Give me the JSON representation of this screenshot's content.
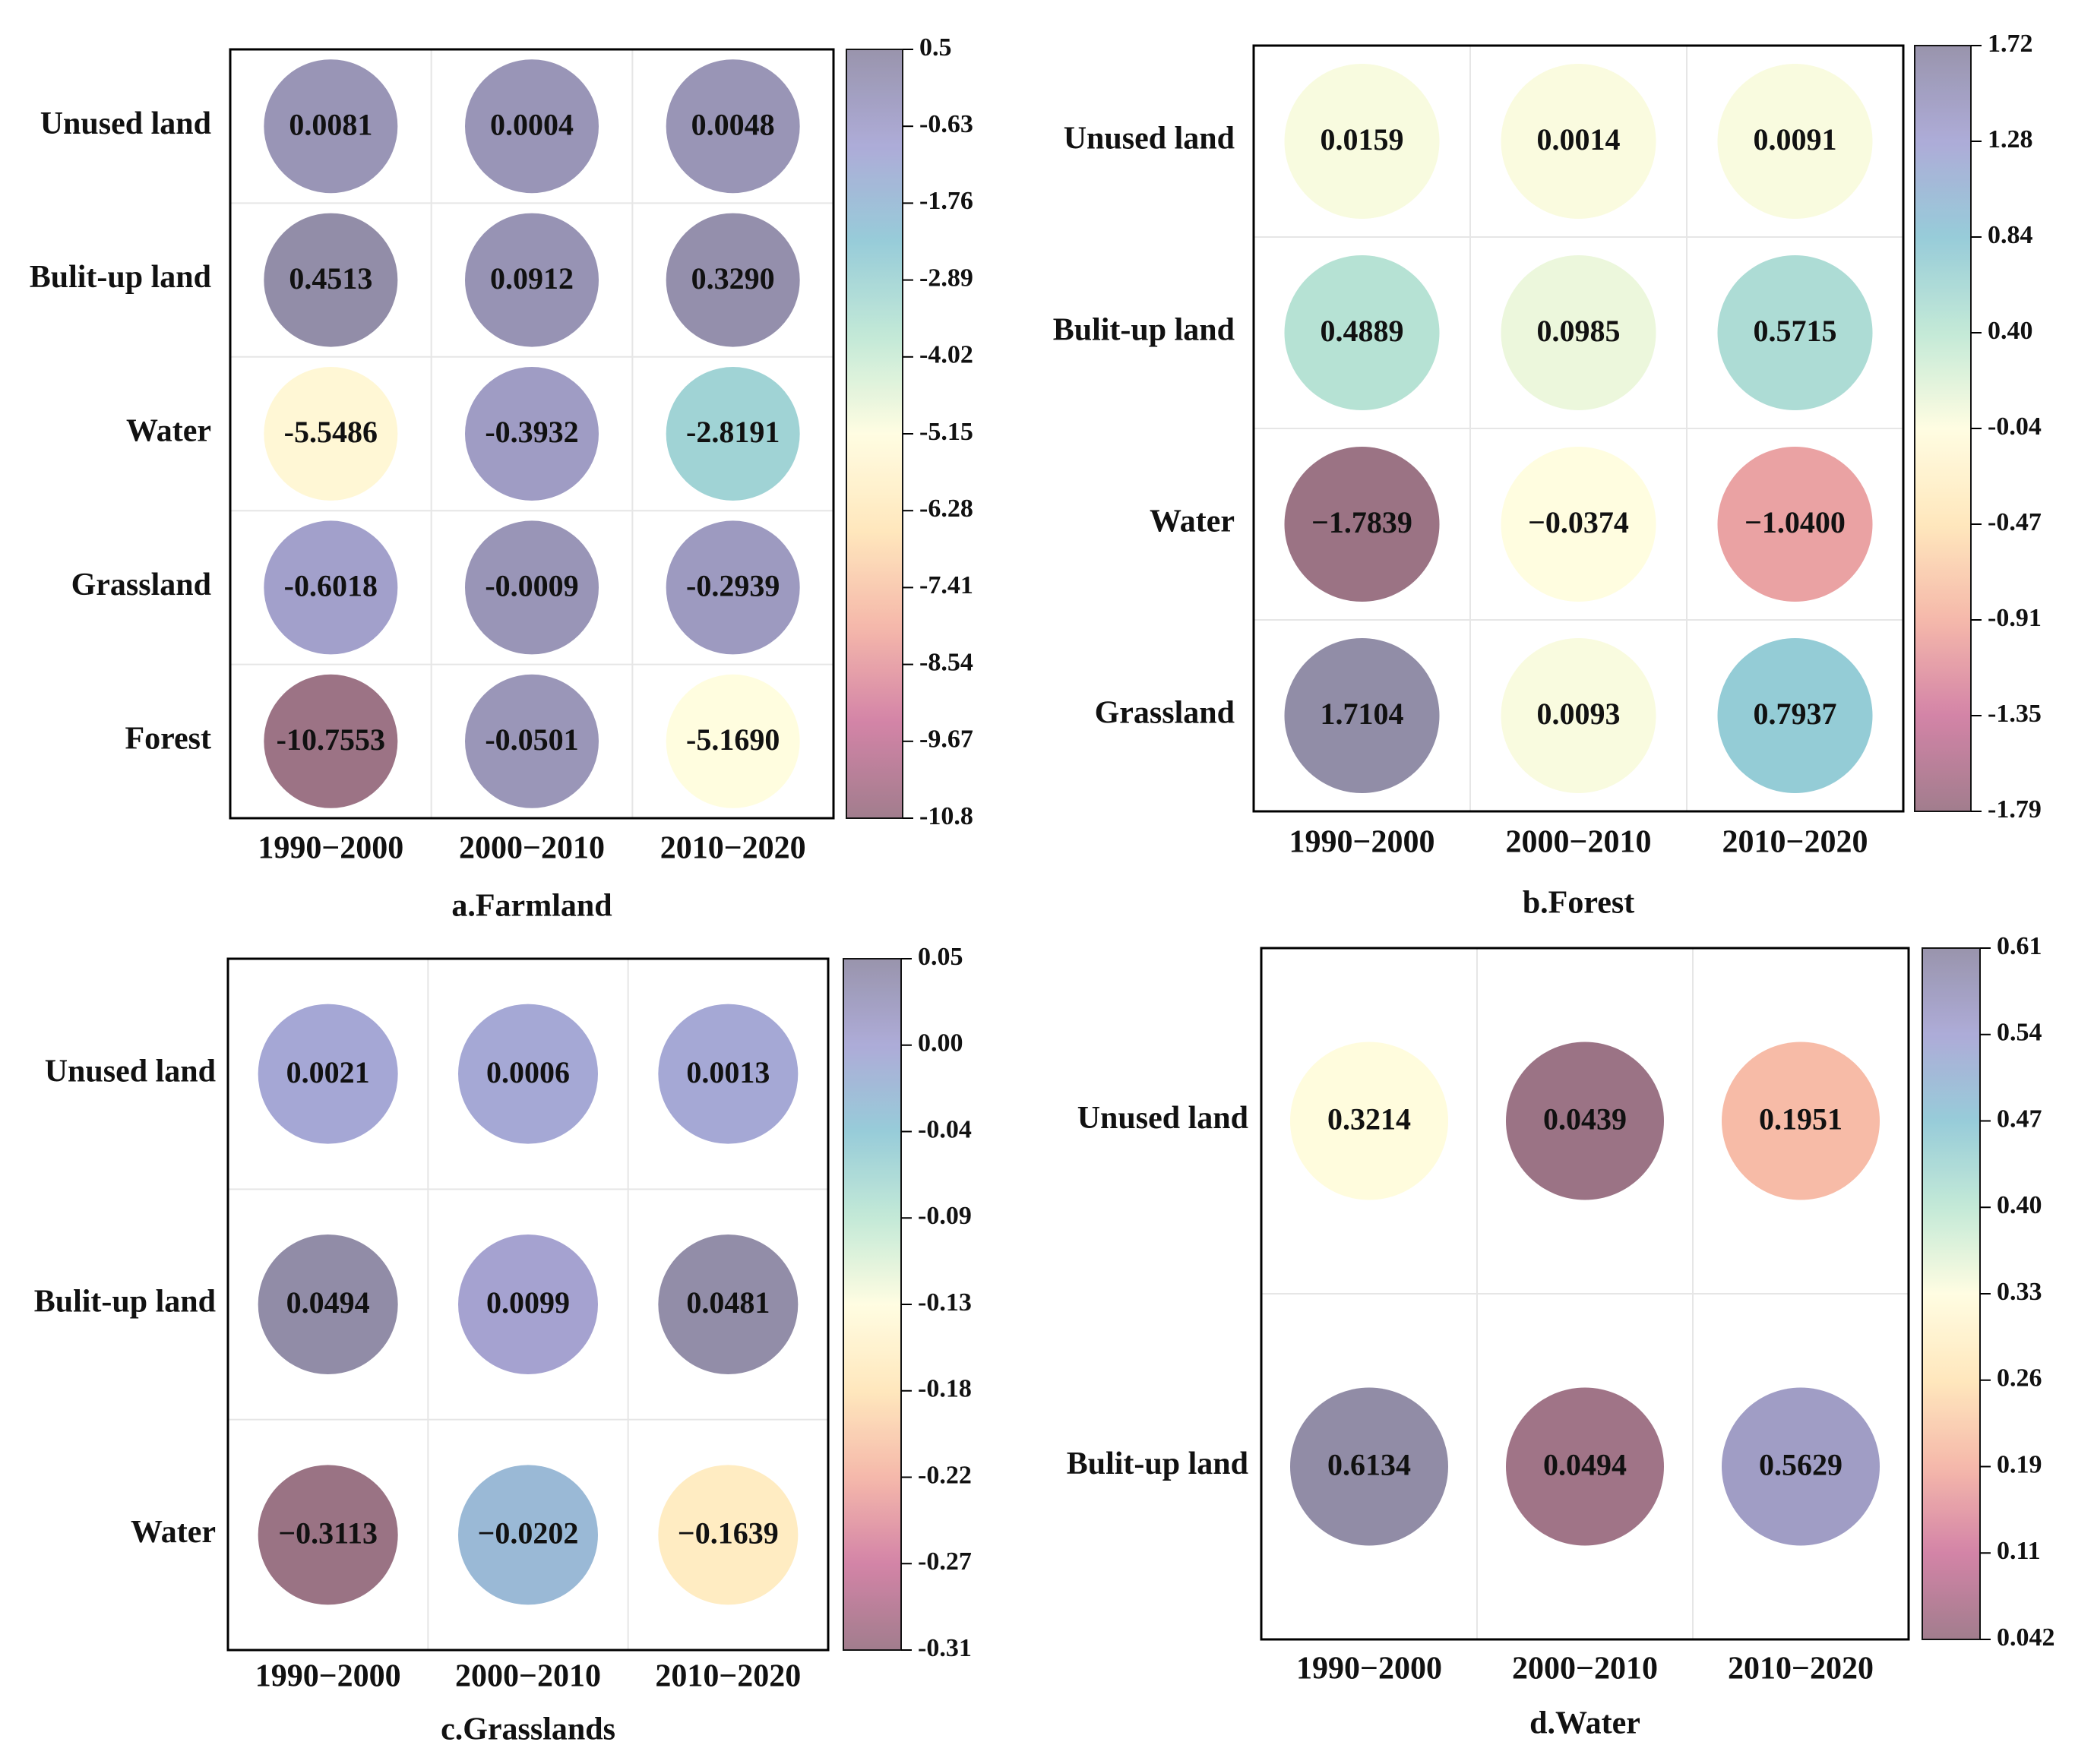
{
  "colorscale": {
    "stops": [
      "#9a7384",
      "#d07aa0",
      "#f5b3a4",
      "#ffe6b8",
      "#fffde0",
      "#bfe8d4",
      "#8fc8d6",
      "#a7a5d5",
      "#918ca6"
    ]
  },
  "columns": [
    "1990−2000",
    "2000−2010",
    "2010−2020"
  ],
  "chart_data": [
    {
      "type": "heatmap",
      "title": "a.Farmland",
      "rows": [
        "Unused land",
        "Bulit-up land",
        "Water",
        "Grassland",
        "Forest"
      ],
      "labels": [
        [
          "0.0081",
          "0.0004",
          "0.0048"
        ],
        [
          "0.4513",
          "0.0912",
          "0.3290"
        ],
        [
          "-5.5486",
          "-0.3932",
          "-2.8191"
        ],
        [
          "-0.6018",
          "-0.0009",
          "-0.2939"
        ],
        [
          "-10.7553",
          "-0.0501",
          "-5.1690"
        ]
      ],
      "values": [
        [
          0.0081,
          0.0004,
          0.0048
        ],
        [
          0.4513,
          0.0912,
          0.329
        ],
        [
          -5.5486,
          -0.3932,
          -2.8191
        ],
        [
          -0.6018,
          -0.0009,
          -0.2939
        ],
        [
          -10.7553,
          -0.0501,
          -5.169
        ]
      ],
      "colorbar_ticks": [
        "0.5",
        "-0.63",
        "-1.76",
        "-2.89",
        "-4.02",
        "-5.15",
        "-6.28",
        "-7.41",
        "-8.54",
        "-9.67",
        "-10.8"
      ],
      "range": [
        -10.8,
        0.5
      ]
    },
    {
      "type": "heatmap",
      "title": "b.Forest",
      "rows": [
        "Unused land",
        "Bulit-up land",
        "Water",
        "Grassland"
      ],
      "labels": [
        [
          "0.0159",
          "0.0014",
          "0.0091"
        ],
        [
          "0.4889",
          "0.0985",
          "0.5715"
        ],
        [
          "−1.7839",
          "−0.0374",
          "−1.0400"
        ],
        [
          "1.7104",
          "0.0093",
          "0.7937"
        ]
      ],
      "values": [
        [
          0.0159,
          0.0014,
          0.0091
        ],
        [
          0.4889,
          0.0985,
          0.5715
        ],
        [
          -1.7839,
          -0.0374,
          -1.04
        ],
        [
          1.7104,
          0.0093,
          0.7937
        ]
      ],
      "colorbar_ticks": [
        "1.72",
        "1.28",
        "0.84",
        "0.40",
        "-0.04",
        "-0.47",
        "-0.91",
        "-1.35",
        "-1.79"
      ],
      "range": [
        -1.79,
        1.72
      ]
    },
    {
      "type": "heatmap",
      "title": "c.Grasslands",
      "rows": [
        "Unused land",
        "Bulit-up land",
        "Water"
      ],
      "labels": [
        [
          "0.0021",
          "0.0006",
          "0.0013"
        ],
        [
          "0.0494",
          "0.0099",
          "0.0481"
        ],
        [
          "−0.3113",
          "−0.0202",
          "−0.1639"
        ]
      ],
      "values": [
        [
          0.0021,
          0.0006,
          0.0013
        ],
        [
          0.0494,
          0.0099,
          0.0481
        ],
        [
          -0.3113,
          -0.0202,
          -0.1639
        ]
      ],
      "colorbar_ticks": [
        "0.05",
        "0.00",
        "-0.04",
        "-0.09",
        "-0.13",
        "-0.18",
        "-0.22",
        "-0.27",
        "-0.31"
      ],
      "range": [
        -0.31,
        0.05
      ]
    },
    {
      "type": "heatmap",
      "title": "d.Water",
      "rows": [
        "Unused land",
        "Bulit-up land"
      ],
      "labels": [
        [
          "0.3214",
          "0.0439",
          "0.1951"
        ],
        [
          "0.6134",
          "0.0494",
          "0.5629"
        ]
      ],
      "values": [
        [
          0.3214,
          0.0439,
          0.1951
        ],
        [
          0.6134,
          0.0494,
          0.5629
        ]
      ],
      "colorbar_ticks": [
        "0.61",
        "0.54",
        "0.47",
        "0.40",
        "0.33",
        "0.26",
        "0.19",
        "0.11",
        "0.042"
      ],
      "range": [
        0.042,
        0.61
      ]
    }
  ]
}
